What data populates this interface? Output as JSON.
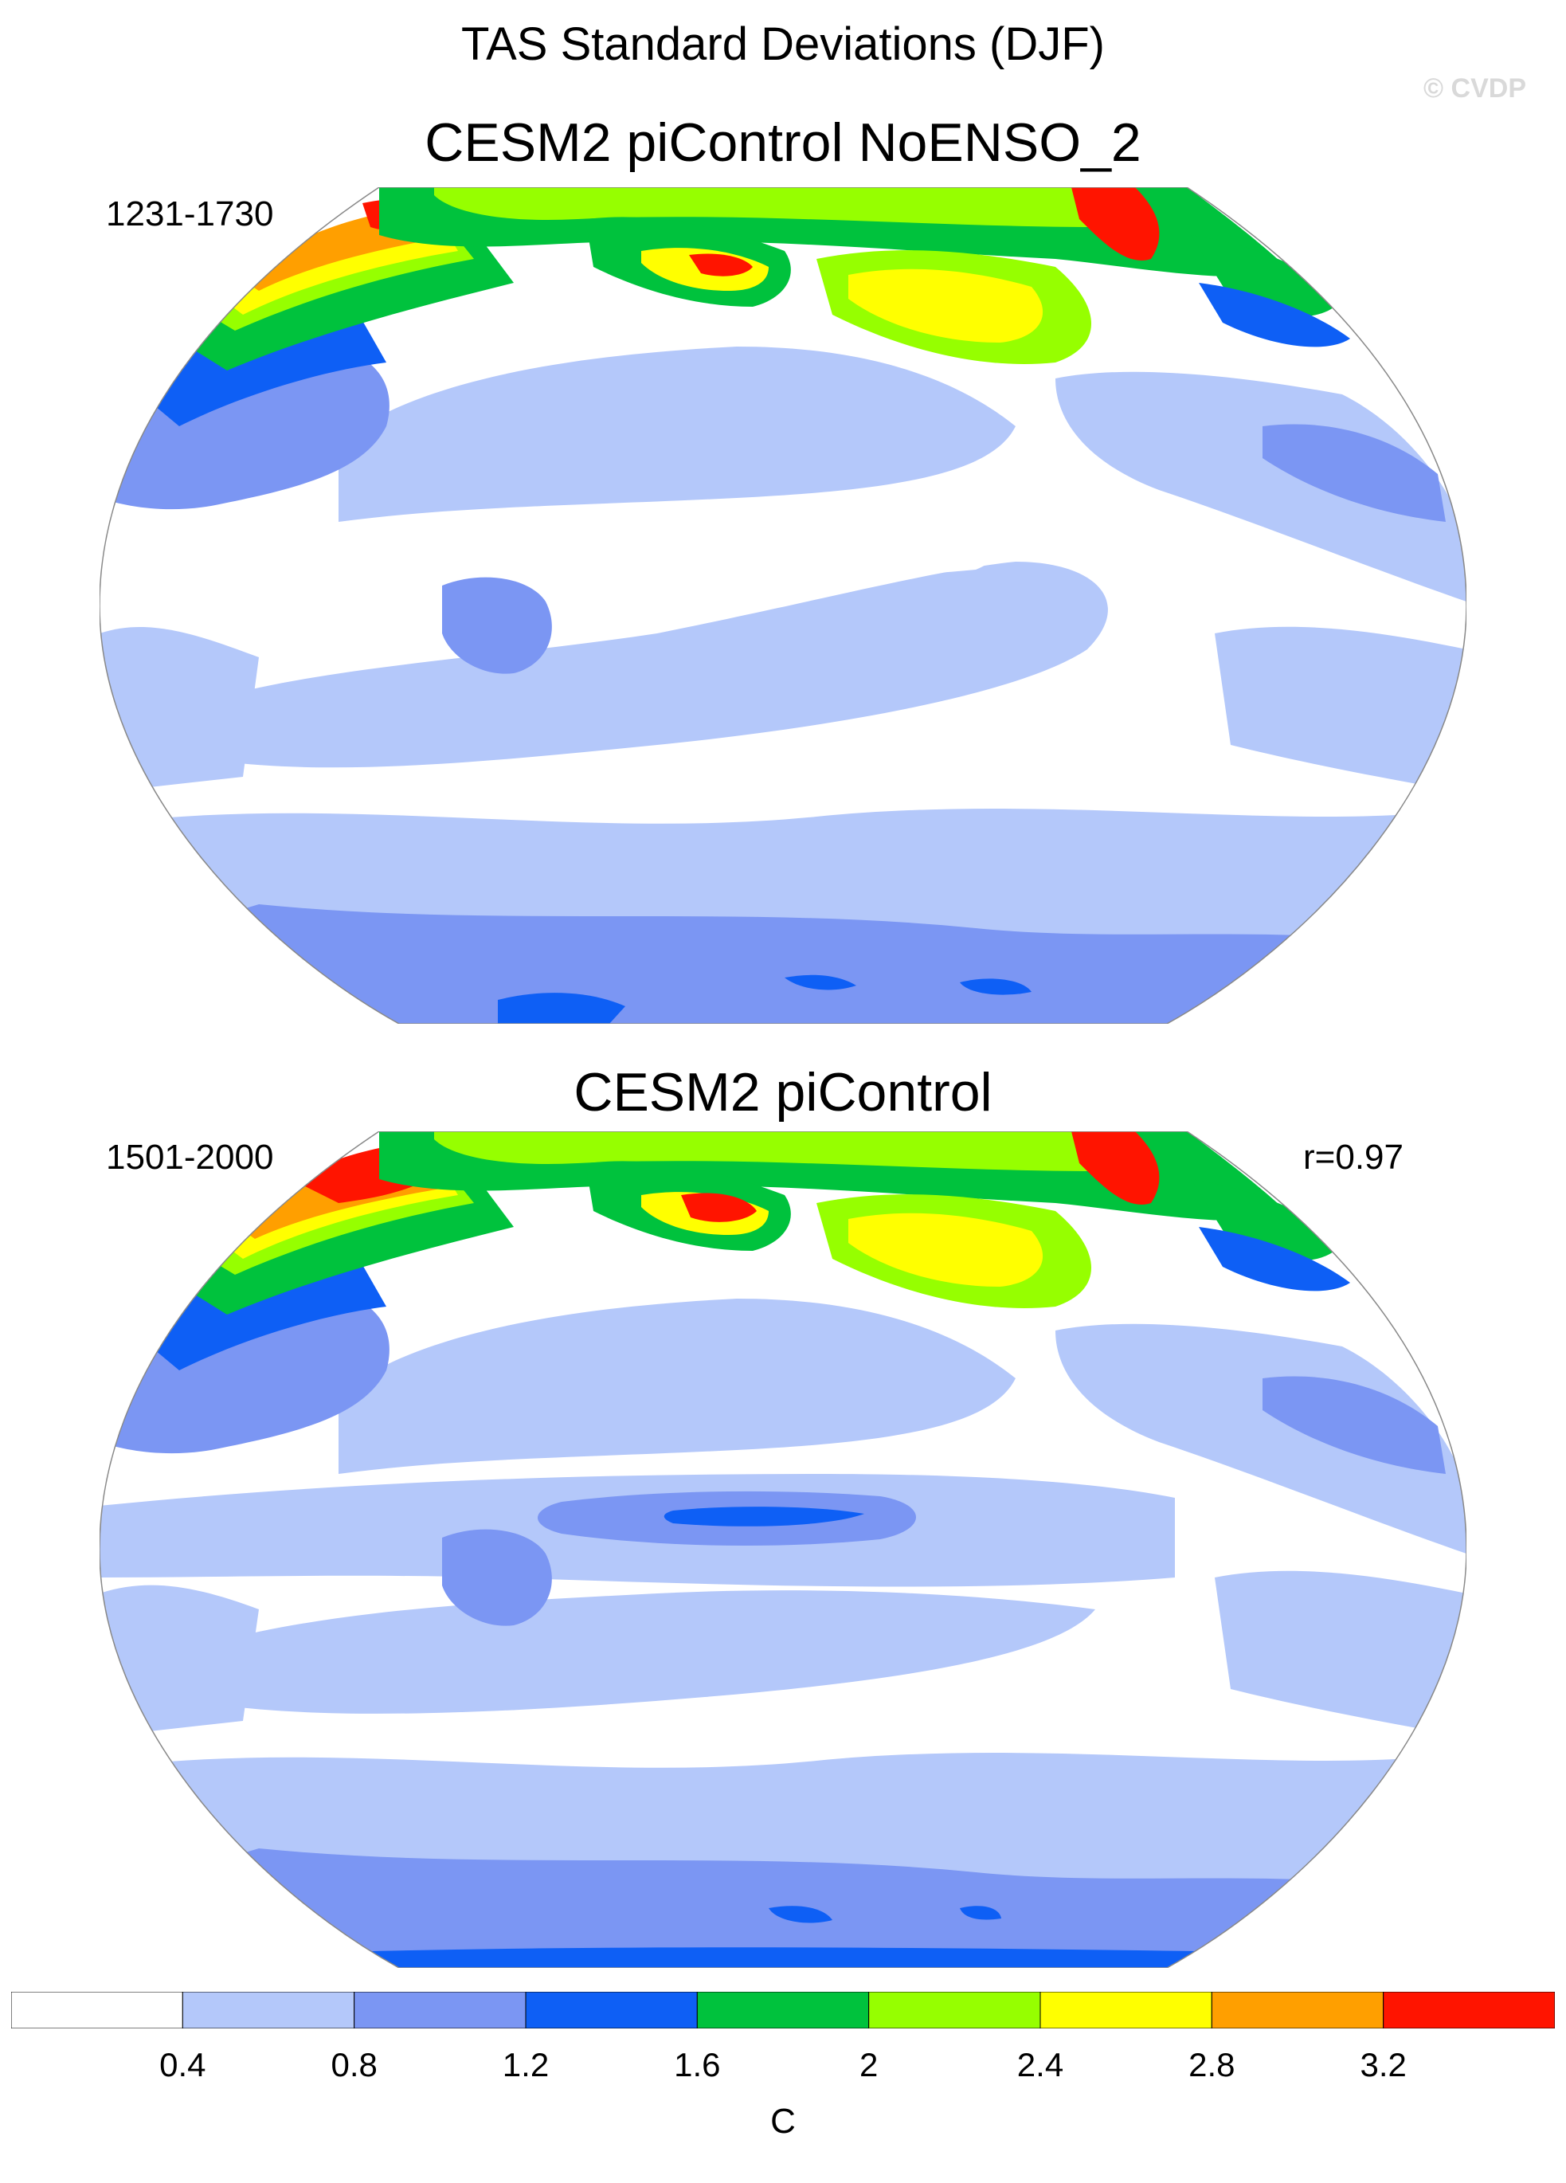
{
  "figure": {
    "title": "TAS Standard Deviations (DJF)",
    "watermark": "© CVDP"
  },
  "panels": [
    {
      "title": "CESM2 piControl NoENSO_2",
      "years": "1231-1730",
      "correlation": ""
    },
    {
      "title": "CESM2 piControl",
      "years": "1501-2000",
      "correlation": "r=0.97"
    }
  ],
  "colorbar": {
    "unit": "C",
    "tick_labels": [
      "0.4",
      "0.8",
      "1.2",
      "1.6",
      "2",
      "2.4",
      "2.8",
      "3.2"
    ],
    "colors": [
      "#ffffff",
      "#b4c8fa",
      "#7b96f3",
      "#0e5ff5",
      "#00c23d",
      "#96ff00",
      "#ffff00",
      "#ff9f00",
      "#ff1400"
    ]
  },
  "chart_data": {
    "type": "heatmap",
    "projection": "Robinson, centered on the Pacific",
    "variable": "TAS standard deviation, DJF",
    "levels": [
      0.4,
      0.8,
      1.2,
      1.6,
      2,
      2.4,
      2.8,
      3.2
    ],
    "unit": "C",
    "maps": [
      {
        "name": "CESM2 piControl NoENSO_2",
        "period": "1231-1730"
      },
      {
        "name": "CESM2 piControl",
        "period": "1501-2000",
        "pattern_correlation": 0.97
      }
    ]
  }
}
